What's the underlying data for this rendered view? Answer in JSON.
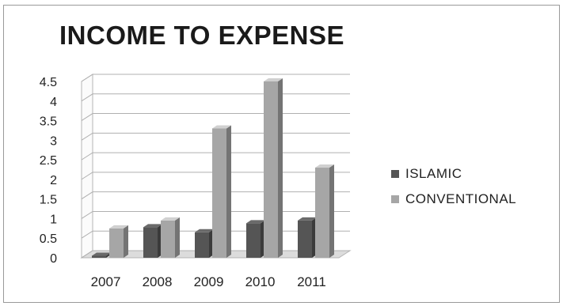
{
  "chart_data": {
    "type": "bar",
    "title": "INCOME TO EXPENSE",
    "categories": [
      "2007",
      "2008",
      "2009",
      "2010",
      "2011"
    ],
    "series": [
      {
        "name": "ISLAMIC",
        "values": [
          0.05,
          0.78,
          0.65,
          0.88,
          0.95
        ]
      },
      {
        "name": "CONVENTIONAL",
        "values": [
          0.75,
          0.95,
          3.3,
          4.5,
          2.3
        ]
      }
    ],
    "ylim": [
      0,
      4.5
    ],
    "yticks": [
      "0",
      "0.5",
      "1",
      "1.5",
      "2",
      "2.5",
      "3",
      "3.5",
      "4",
      "4.5"
    ],
    "grid": true,
    "legend_position": "right",
    "colors": {
      "ISLAMIC": "#555555",
      "CONVENTIONAL": "#a6a6a6"
    }
  }
}
